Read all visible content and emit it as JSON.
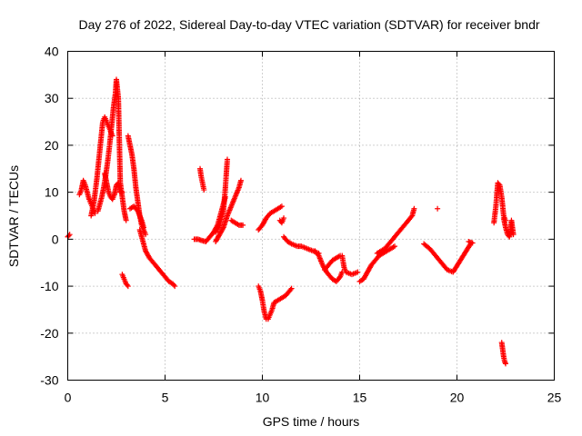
{
  "chart_data": {
    "type": "scatter",
    "title": "Day 276 of 2022, Sidereal Day-to-day VTEC variation (SDTVAR) for receiver bndr",
    "xlabel": "GPS time / hours",
    "ylabel": "SDTVAR / TECUs",
    "xlim": [
      0,
      25
    ],
    "ylim": [
      -30,
      40
    ],
    "xticks": [
      0,
      5,
      10,
      15,
      20,
      25
    ],
    "yticks": [
      -30,
      -20,
      -10,
      0,
      10,
      20,
      30,
      40
    ],
    "grid": true,
    "marker": "+",
    "color": "#ff0000",
    "series": [
      {
        "name": "s01",
        "x": [
          0.0,
          0.1
        ],
        "y": [
          0.5,
          1.0
        ]
      },
      {
        "name": "s02",
        "x": [
          0.6,
          0.7,
          0.8,
          0.9,
          1.0,
          1.1,
          1.2,
          1.3,
          1.4
        ],
        "y": [
          9.5,
          10.5,
          12.5,
          11.5,
          10.0,
          8.5,
          7.5,
          6.5,
          5.5
        ]
      },
      {
        "name": "s03",
        "x": [
          1.2,
          1.35,
          1.5,
          1.6,
          1.7,
          1.8,
          1.9,
          2.0,
          2.1,
          2.2,
          2.3
        ],
        "y": [
          5.0,
          8.0,
          13.0,
          17.0,
          21.0,
          25.0,
          26.0,
          25.0,
          24.0,
          23.0,
          22.0
        ]
      },
      {
        "name": "s04",
        "x": [
          1.55,
          1.65,
          1.75,
          1.85,
          1.95,
          2.05,
          2.15,
          2.25,
          2.35,
          2.45,
          2.5,
          2.6,
          2.7,
          2.8,
          2.9,
          3.0
        ],
        "y": [
          6.0,
          7.5,
          9.0,
          11.0,
          13.5,
          16.5,
          20.0,
          24.0,
          28.0,
          31.0,
          34.0,
          30.0,
          12.0,
          9.0,
          6.0,
          4.0
        ]
      },
      {
        "name": "s05",
        "x": [
          1.9,
          2.0,
          2.1,
          2.2,
          2.3,
          2.4,
          2.5,
          2.6,
          2.7,
          2.8
        ],
        "y": [
          14.0,
          12.0,
          10.0,
          9.0,
          8.5,
          9.5,
          11.5,
          12.0,
          10.0,
          10.0
        ]
      },
      {
        "name": "s06",
        "x": [
          2.8,
          2.9,
          3.0,
          3.1
        ],
        "y": [
          -7.5,
          -8.5,
          -9.5,
          -10.0
        ]
      },
      {
        "name": "s07",
        "x": [
          3.1,
          3.2,
          3.3,
          3.4,
          3.5,
          3.6,
          3.7,
          3.8,
          3.9,
          4.0
        ],
        "y": [
          22.0,
          20.0,
          18.0,
          15.0,
          11.0,
          8.0,
          5.0,
          3.0,
          2.0,
          1.0
        ]
      },
      {
        "name": "s08",
        "x": [
          3.2,
          3.4,
          3.6,
          3.8,
          3.9
        ],
        "y": [
          6.5,
          7.0,
          6.0,
          4.0,
          2.5
        ]
      },
      {
        "name": "s09",
        "x": [
          3.7,
          3.8,
          3.9,
          4.0,
          4.2,
          4.4,
          4.6,
          4.8,
          5.0,
          5.2,
          5.4,
          5.5
        ],
        "y": [
          2.0,
          0.5,
          -1.0,
          -2.5,
          -4.0,
          -5.0,
          -6.0,
          -7.0,
          -8.0,
          -9.0,
          -9.5,
          -10.0
        ]
      },
      {
        "name": "s10",
        "x": [
          6.5,
          6.7,
          6.9,
          7.1,
          7.3,
          7.5,
          7.7,
          7.9,
          8.1
        ],
        "y": [
          0.0,
          0.0,
          -0.3,
          -0.5,
          0.5,
          1.5,
          3.0,
          6.0,
          9.0
        ]
      },
      {
        "name": "s11",
        "x": [
          6.8,
          6.85,
          6.9,
          6.95,
          7.0
        ],
        "y": [
          15.0,
          13.5,
          12.5,
          11.5,
          10.5
        ]
      },
      {
        "name": "s12",
        "x": [
          7.6,
          7.8,
          8.0,
          8.1,
          8.2
        ],
        "y": [
          1.5,
          3.0,
          6.0,
          11.0,
          17.0
        ]
      },
      {
        "name": "s13",
        "x": [
          7.6,
          7.8,
          8.0,
          8.2,
          8.4,
          8.6,
          8.8,
          8.9
        ],
        "y": [
          -0.5,
          1.0,
          2.5,
          5.0,
          7.0,
          9.0,
          11.0,
          12.5
        ]
      },
      {
        "name": "s14",
        "x": [
          8.4,
          8.6,
          8.8,
          9.0
        ],
        "y": [
          4.0,
          3.5,
          3.0,
          3.0
        ]
      },
      {
        "name": "s15",
        "x": [
          9.8,
          10.0,
          10.2,
          10.4,
          10.6,
          10.8,
          11.0
        ],
        "y": [
          2.0,
          3.0,
          4.5,
          5.5,
          6.0,
          6.5,
          7.0
        ]
      },
      {
        "name": "s16",
        "x": [
          10.9,
          11.0,
          11.1
        ],
        "y": [
          4.0,
          3.5,
          4.5
        ]
      },
      {
        "name": "s17",
        "x": [
          9.8,
          9.9,
          10.0,
          10.1,
          10.2,
          10.3,
          10.4,
          10.5,
          10.6,
          10.8,
          11.0,
          11.2,
          11.4,
          11.5
        ],
        "y": [
          -10.0,
          -11.0,
          -13.0,
          -15.5,
          -17.0,
          -17.0,
          -16.0,
          -15.0,
          -13.5,
          -13.0,
          -12.5,
          -12.0,
          -11.0,
          -10.5
        ]
      },
      {
        "name": "s18",
        "x": [
          11.1,
          11.3,
          11.5,
          11.8,
          12.0,
          12.3,
          12.6,
          12.9
        ],
        "y": [
          0.5,
          -0.5,
          -1.0,
          -1.5,
          -1.5,
          -2.0,
          -2.5,
          -3.0
        ]
      },
      {
        "name": "s19",
        "x": [
          12.7,
          12.9,
          13.1,
          13.3,
          13.6,
          13.8,
          14.0,
          14.1
        ],
        "y": [
          -2.5,
          -3.5,
          -5.5,
          -7.0,
          -8.5,
          -9.0,
          -8.0,
          -7.0
        ]
      },
      {
        "name": "s20",
        "x": [
          13.2,
          13.4,
          13.6,
          13.8,
          14.0
        ],
        "y": [
          -6.5,
          -5.5,
          -4.5,
          -4.0,
          -3.5
        ]
      },
      {
        "name": "s21",
        "x": [
          14.1,
          14.2,
          14.3,
          14.6,
          14.9
        ],
        "y": [
          -3.5,
          -6.0,
          -7.0,
          -7.5,
          -7.0
        ]
      },
      {
        "name": "s22",
        "x": [
          15.0,
          15.2,
          15.4,
          15.6,
          15.8,
          16.0,
          16.2,
          16.4,
          16.6,
          16.8
        ],
        "y": [
          -9.0,
          -8.5,
          -7.0,
          -5.5,
          -4.5,
          -3.5,
          -3.0,
          -2.5,
          -2.0,
          -1.5
        ]
      },
      {
        "name": "s23",
        "x": [
          15.9,
          16.1,
          16.3,
          16.5,
          16.7,
          16.9,
          17.1,
          17.3,
          17.5,
          17.7,
          17.8
        ],
        "y": [
          -3.0,
          -2.5,
          -2.0,
          -1.0,
          0.0,
          1.0,
          2.0,
          3.0,
          4.0,
          5.0,
          6.5
        ]
      },
      {
        "name": "s24",
        "x": [
          18.3,
          18.6,
          18.9,
          19.2,
          19.5,
          19.8,
          20.1,
          20.4,
          20.7
        ],
        "y": [
          -1.0,
          -2.0,
          -3.5,
          -5.0,
          -6.5,
          -7.0,
          -5.0,
          -3.0,
          -1.0
        ]
      },
      {
        "name": "s25",
        "x": [
          19.0
        ],
        "y": [
          6.5
        ]
      },
      {
        "name": "s26",
        "x": [
          20.6,
          20.8
        ],
        "y": [
          -0.5,
          -0.8
        ]
      },
      {
        "name": "s27",
        "x": [
          21.9,
          22.0,
          22.1,
          22.2,
          22.3,
          22.4,
          22.5
        ],
        "y": [
          3.5,
          7.0,
          12.0,
          11.5,
          9.0,
          5.0,
          4.0
        ]
      },
      {
        "name": "s28",
        "x": [
          22.4,
          22.5,
          22.6,
          22.7,
          22.8,
          22.9
        ],
        "y": [
          4.5,
          2.5,
          1.0,
          0.5,
          4.0,
          1.0
        ]
      },
      {
        "name": "s29",
        "x": [
          22.3,
          22.35,
          22.4,
          22.45,
          22.5
        ],
        "y": [
          -22.0,
          -23.5,
          -25.0,
          -26.0,
          -26.5
        ]
      }
    ]
  }
}
